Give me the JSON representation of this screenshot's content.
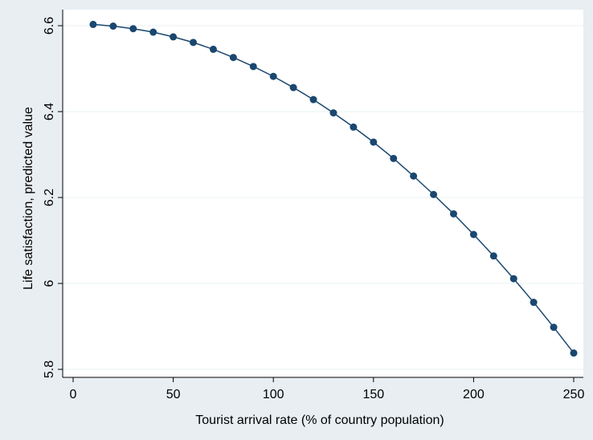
{
  "chart_data": {
    "type": "line",
    "title": "",
    "xlabel": "Tourist arrival rate (% of country population)",
    "ylabel": "Life satisfaction, predicted value",
    "xlim": [
      0,
      250
    ],
    "ylim": [
      5.8,
      6.6
    ],
    "x_ticks": [
      0,
      50,
      100,
      150,
      200,
      250
    ],
    "y_ticks": [
      5.8,
      6,
      6.2,
      6.4,
      6.6
    ],
    "x_tick_labels": [
      "0",
      "50",
      "100",
      "150",
      "200",
      "250"
    ],
    "y_tick_labels": [
      "5.8",
      "6",
      "6.2",
      "6.4",
      "6.6"
    ],
    "grid": true,
    "line_color": "#1a476f",
    "plot_background": "#ffffff",
    "outer_background": "#e8eef2",
    "series": [
      {
        "x": [
          10,
          20,
          30,
          40,
          50,
          60,
          70,
          80,
          90,
          100,
          110,
          120,
          130,
          140,
          150,
          160,
          170,
          180,
          190,
          200,
          210,
          220,
          230,
          240,
          250
        ],
        "values": [
          6.603,
          6.599,
          6.593,
          6.585,
          6.574,
          6.561,
          6.545,
          6.526,
          6.505,
          6.482,
          6.456,
          6.428,
          6.397,
          6.364,
          6.329,
          6.291,
          6.25,
          6.207,
          6.162,
          6.114,
          6.064,
          6.011,
          5.956,
          5.898,
          5.838
        ]
      }
    ]
  }
}
